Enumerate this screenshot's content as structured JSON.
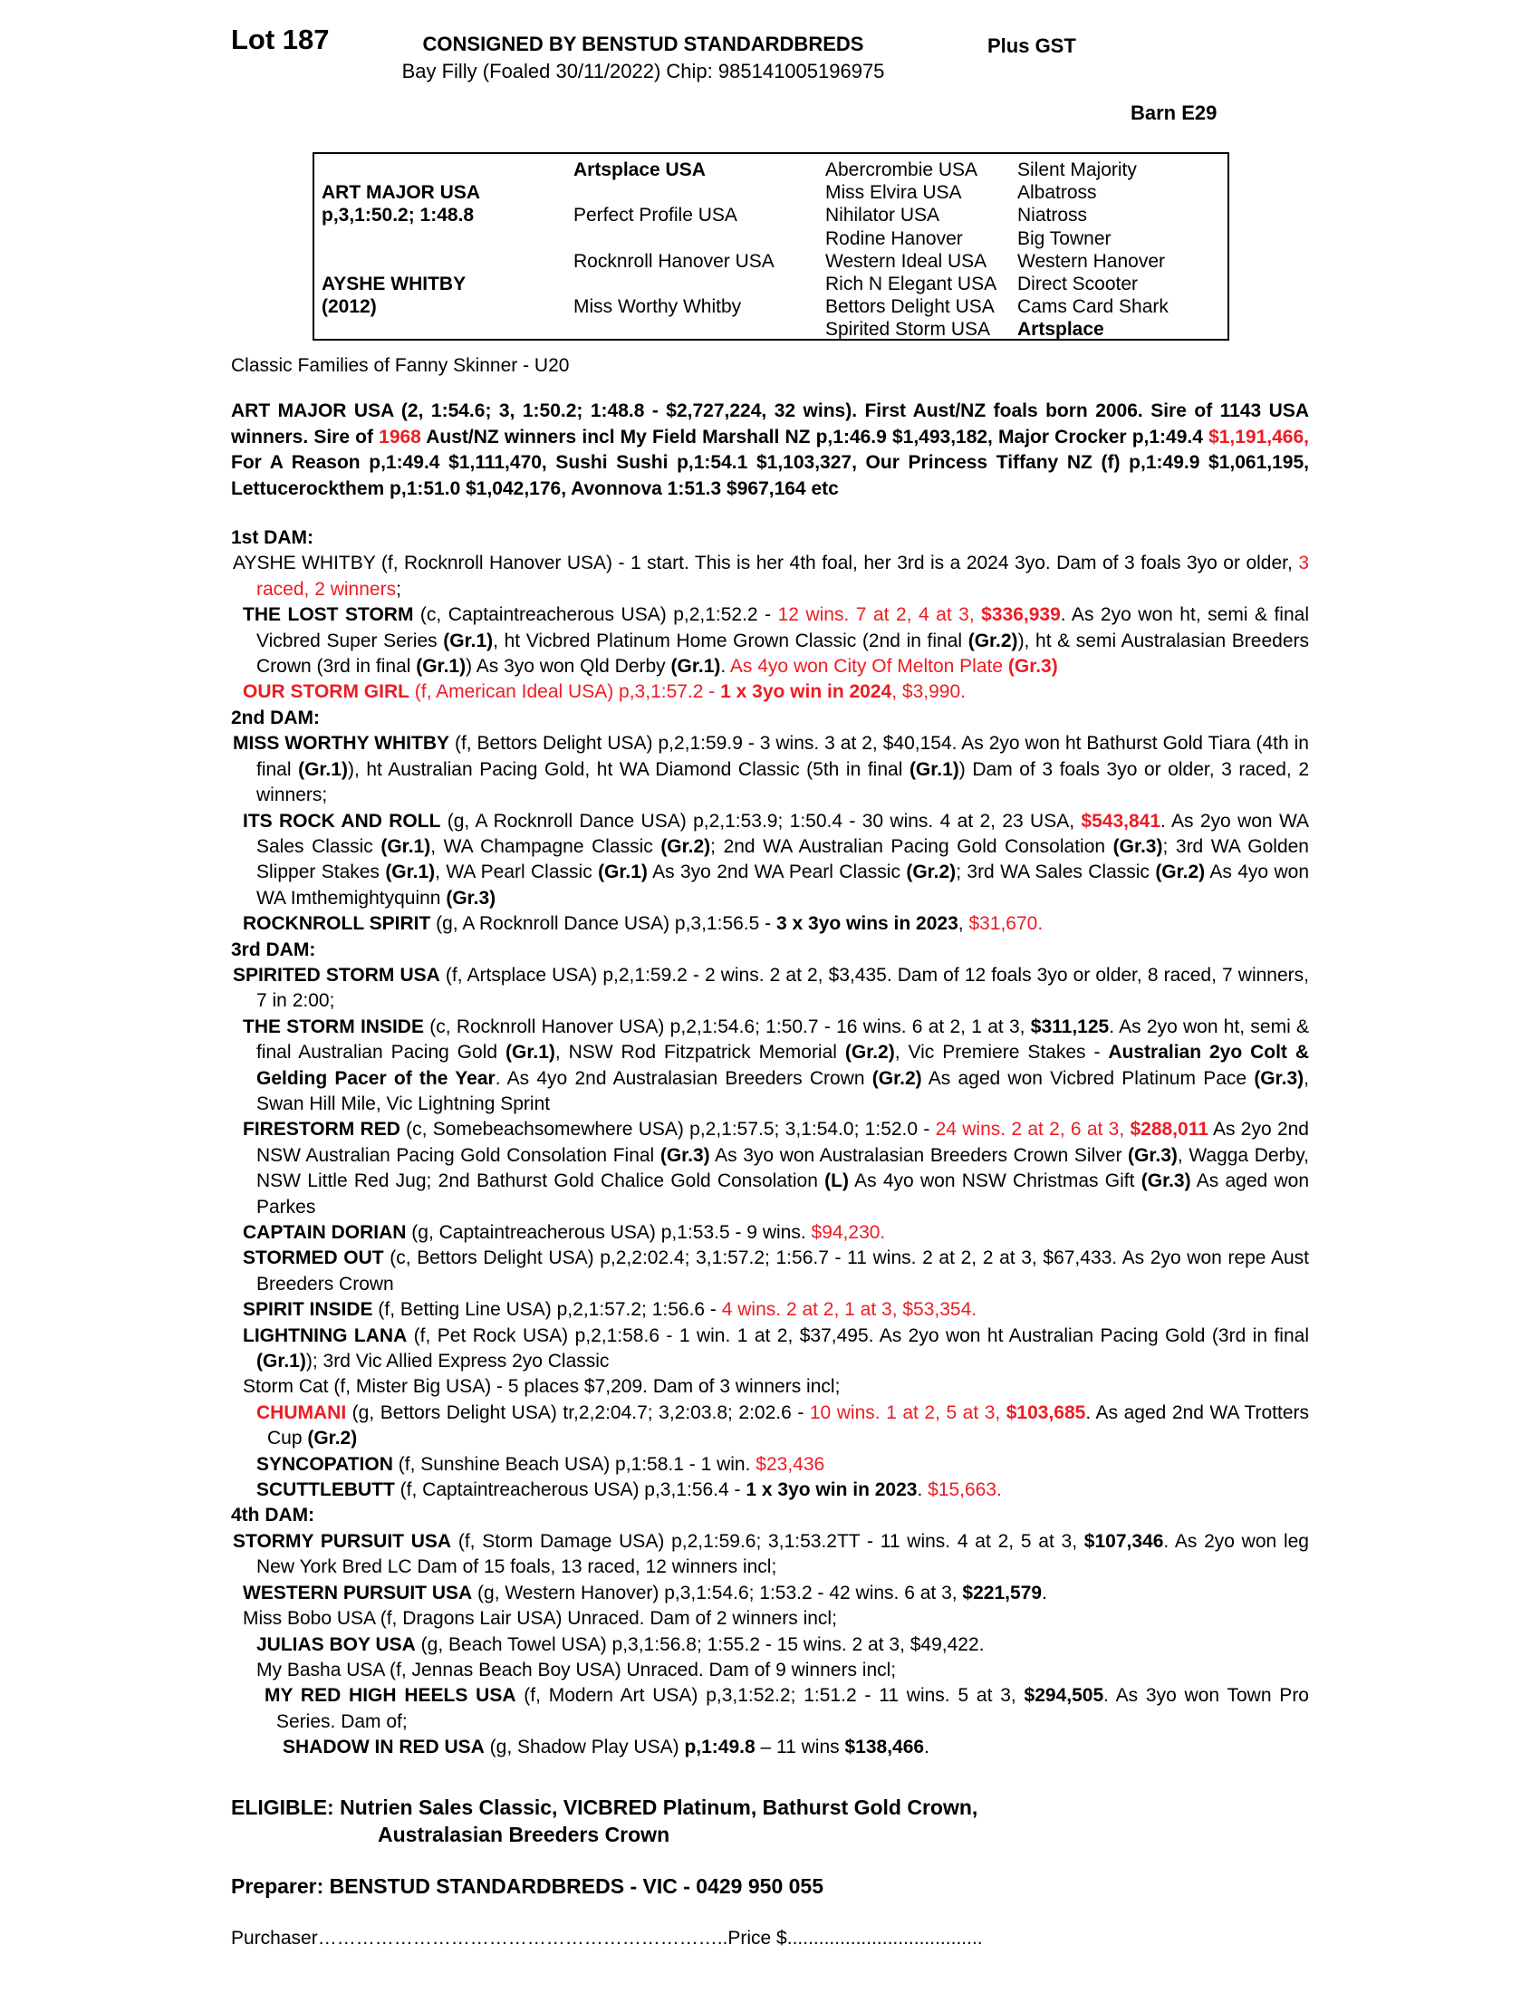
{
  "header": {
    "lot": "Lot 187",
    "consignor": "CONSIGNED BY BENSTUD STANDARDBREDS",
    "description": "Bay Filly (Foaled 30/11/2022) Chip: 985141005196975",
    "plus_gst": "Plus GST",
    "barn": "Barn E29"
  },
  "accent_red": "#ed1c24",
  "pedigree_table": {
    "col1": [
      {
        "t": ""
      },
      {
        "t": "ART MAJOR USA",
        "b": true
      },
      {
        "t": "p,3,1:50.2; 1:48.8",
        "b": true
      },
      {
        "t": ""
      },
      {
        "t": ""
      },
      {
        "t": "AYSHE WHITBY",
        "b": true
      },
      {
        "t": "(2012)",
        "b": true
      },
      {
        "t": ""
      }
    ],
    "col2": [
      {
        "t": "Artsplace USA",
        "b": true
      },
      {
        "t": ""
      },
      {
        "t": "Perfect Profile USA"
      },
      {
        "t": ""
      },
      {
        "t": "Rocknroll Hanover USA"
      },
      {
        "t": ""
      },
      {
        "t": "Miss Worthy Whitby"
      },
      {
        "t": ""
      }
    ],
    "col3": [
      {
        "t": "Abercrombie USA"
      },
      {
        "t": "Miss Elvira USA"
      },
      {
        "t": "Nihilator USA"
      },
      {
        "t": "Rodine Hanover"
      },
      {
        "t": "Western Ideal USA"
      },
      {
        "t": "Rich N Elegant USA"
      },
      {
        "t": "Bettors Delight USA"
      },
      {
        "t": "Spirited Storm USA"
      }
    ],
    "col4": [
      {
        "t": "Silent Majority"
      },
      {
        "t": "Albatross"
      },
      {
        "t": "Niatross"
      },
      {
        "t": "Big Towner"
      },
      {
        "t": "Western Hanover"
      },
      {
        "t": "Direct Scooter"
      },
      {
        "t": "Cams Card Shark"
      },
      {
        "t": "Artsplace",
        "b": true
      }
    ]
  },
  "family_line": "Classic Families of Fanny Skinner - U20",
  "sire_paragraph": [
    {
      "t": "ART MAJOR USA (2, 1:54.6; 3, 1:50.2; 1:48.8 - $2,727,224, 32 wins). First Aust/NZ foals born 2006. Sire of 1143 USA winners. Sire of ",
      "b": true
    },
    {
      "t": "1968",
      "b": true,
      "r": true
    },
    {
      "t": " Aust/NZ winners incl My Field Marshall NZ p,1:46.9 $1,493,182, Major Crocker p,1:49.4 ",
      "b": true
    },
    {
      "t": "$1,191,466,",
      "b": true,
      "r": true
    },
    {
      "t": " For A Reason p,1:49.4 $1,111,470, Sushi Sushi p,1:54.1 $1,103,327, Our Princess Tiffany NZ (f) p,1:49.9 $1,061,195, Lettucerockthem p,1:51.0 $1,042,176, Avonnova 1:51.3 $967,164 etc",
      "b": true
    }
  ],
  "body": {
    "blocks": [
      {
        "cls": "h",
        "name": "heading-1st-dam",
        "segs": [
          {
            "t": "1st DAM:",
            "b": true
          }
        ]
      },
      {
        "cls": "p1",
        "name": "para-ayshe-whitby",
        "segs": [
          {
            "t": "AYSHE WHITBY (f, Rocknroll Hanover USA) - 1 start. This is her 4th foal, her 3rd is a 2024 3yo. Dam of 3 foals 3yo or older, "
          },
          {
            "t": "3 raced, 2 winners",
            "r": true
          },
          {
            "t": ";"
          }
        ]
      },
      {
        "cls": "p2",
        "name": "para-the-lost-storm",
        "segs": [
          {
            "t": "THE LOST STORM",
            "b": true
          },
          {
            "t": " (c, Captaintreacherous USA) p,2,1:52.2 - "
          },
          {
            "t": "12 wins. 7 at 2, 4 at 3, ",
            "r": true
          },
          {
            "t": "$336,939",
            "b": true,
            "r": true
          },
          {
            "t": ". As 2yo won ht, semi & final Vicbred Super Series "
          },
          {
            "t": "(Gr.1)",
            "b": true
          },
          {
            "t": ", ht Vicbred Platinum Home Grown Classic (2nd in final "
          },
          {
            "t": "(Gr.2)",
            "b": true
          },
          {
            "t": "), ht & semi Australasian Breeders Crown (3rd in final "
          },
          {
            "t": "(Gr.1)",
            "b": true
          },
          {
            "t": ") As 3yo won Qld Derby "
          },
          {
            "t": "(Gr.1)",
            "b": true
          },
          {
            "t": ". "
          },
          {
            "t": "As 4yo won City Of Melton Plate ",
            "r": true
          },
          {
            "t": "(Gr.3)",
            "b": true,
            "r": true
          }
        ]
      },
      {
        "cls": "p2",
        "name": "para-our-storm-girl",
        "segs": [
          {
            "t": "OUR STORM GIRL",
            "b": true,
            "r": true
          },
          {
            "t": " (f, American Ideal USA) p,3,1:57.2 - ",
            "r": true
          },
          {
            "t": "1 x 3yo win in 2024",
            "b": true,
            "r": true
          },
          {
            "t": ", $3,990.",
            "r": true
          }
        ]
      },
      {
        "cls": "h",
        "name": "heading-2nd-dam",
        "segs": [
          {
            "t": "2nd DAM:",
            "b": true
          }
        ]
      },
      {
        "cls": "p1",
        "name": "para-miss-worthy-whitby",
        "segs": [
          {
            "t": "MISS WORTHY WHITBY",
            "b": true
          },
          {
            "t": " (f, Bettors Delight USA) p,2,1:59.9 - 3 wins. 3 at 2, $40,154. As 2yo won ht Bathurst Gold Tiara (4th in final "
          },
          {
            "t": "(Gr.1)",
            "b": true
          },
          {
            "t": "), ht Australian Pacing Gold, ht WA Diamond Classic (5th in final "
          },
          {
            "t": "(Gr.1)",
            "b": true
          },
          {
            "t": ") Dam of 3 foals 3yo or older, 3 raced, 2 winners;"
          }
        ]
      },
      {
        "cls": "p2",
        "name": "para-its-rock-and-roll",
        "segs": [
          {
            "t": "ITS ROCK AND ROLL",
            "b": true
          },
          {
            "t": " (g, A Rocknroll Dance USA) p,2,1:53.9; 1:50.4 - 30 wins. 4 at 2, 23 USA, "
          },
          {
            "t": "$543,841",
            "b": true,
            "r": true
          },
          {
            "t": ". As 2yo won WA Sales Classic "
          },
          {
            "t": "(Gr.1)",
            "b": true
          },
          {
            "t": ", WA Champagne Classic "
          },
          {
            "t": "(Gr.2)",
            "b": true
          },
          {
            "t": "; 2nd WA Australian Pacing Gold Consolation "
          },
          {
            "t": "(Gr.3)",
            "b": true
          },
          {
            "t": "; 3rd WA Golden Slipper Stakes "
          },
          {
            "t": "(Gr.1)",
            "b": true
          },
          {
            "t": ", WA Pearl Classic "
          },
          {
            "t": "(Gr.1)",
            "b": true
          },
          {
            "t": " As 3yo 2nd WA Pearl Classic "
          },
          {
            "t": "(Gr.2)",
            "b": true
          },
          {
            "t": "; 3rd WA Sales Classic "
          },
          {
            "t": "(Gr.2)",
            "b": true
          },
          {
            "t": " As 4yo won WA Imthemightyquinn "
          },
          {
            "t": "(Gr.3)",
            "b": true
          }
        ]
      },
      {
        "cls": "p2",
        "name": "para-rocknroll-spirit",
        "segs": [
          {
            "t": "ROCKNROLL SPIRIT",
            "b": true
          },
          {
            "t": " (g, A Rocknroll Dance USA) p,3,1:56.5 - "
          },
          {
            "t": "3 x 3yo wins in 2023",
            "b": true
          },
          {
            "t": ", "
          },
          {
            "t": "$31,670.",
            "r": true
          }
        ]
      },
      {
        "cls": "h",
        "name": "heading-3rd-dam",
        "segs": [
          {
            "t": "3rd DAM:",
            "b": true
          }
        ]
      },
      {
        "cls": "p1",
        "name": "para-spirited-storm-usa",
        "segs": [
          {
            "t": "SPIRITED STORM USA",
            "b": true
          },
          {
            "t": " (f, Artsplace USA) p,2,1:59.2 - 2 wins. 2 at 2, $3,435. Dam of 12 foals 3yo or older, 8 raced, 7 winners, 7 in 2:00;"
          }
        ]
      },
      {
        "cls": "p2",
        "name": "para-the-storm-inside",
        "segs": [
          {
            "t": "THE STORM INSIDE",
            "b": true
          },
          {
            "t": " (c, Rocknroll Hanover USA) p,2,1:54.6; 1:50.7 - 16 wins. 6 at 2, 1 at 3, "
          },
          {
            "t": "$311,125",
            "b": true
          },
          {
            "t": ". As 2yo won ht, semi & final Australian Pacing Gold "
          },
          {
            "t": "(Gr.1)",
            "b": true
          },
          {
            "t": ", NSW Rod Fitzpatrick Memorial "
          },
          {
            "t": "(Gr.2)",
            "b": true
          },
          {
            "t": ", Vic Premiere Stakes - "
          },
          {
            "t": "Australian 2yo Colt & Gelding Pacer of the Year",
            "b": true
          },
          {
            "t": ". As 4yo 2nd Australasian Breeders Crown "
          },
          {
            "t": "(Gr.2)",
            "b": true
          },
          {
            "t": " As aged won Vicbred Platinum Pace "
          },
          {
            "t": "(Gr.3)",
            "b": true
          },
          {
            "t": ", Swan Hill Mile, Vic Lightning Sprint"
          }
        ]
      },
      {
        "cls": "p2",
        "name": "para-firestorm-red",
        "segs": [
          {
            "t": "FIRESTORM RED",
            "b": true
          },
          {
            "t": " (c, Somebeachsomewhere USA) p,2,1:57.5; 3,1:54.0; 1:52.0 - "
          },
          {
            "t": "24 wins. 2 at 2, 6 at 3, ",
            "r": true
          },
          {
            "t": "$288,011",
            "b": true,
            "r": true
          },
          {
            "t": " As 2yo 2nd NSW Australian Pacing Gold Consolation Final "
          },
          {
            "t": "(Gr.3)",
            "b": true
          },
          {
            "t": " As 3yo won Australasian Breeders Crown Silver "
          },
          {
            "t": "(Gr.3)",
            "b": true
          },
          {
            "t": ", Wagga Derby, NSW Little Red Jug; 2nd Bathurst Gold Chalice Gold Consolation "
          },
          {
            "t": "(L)",
            "b": true
          },
          {
            "t": " As 4yo won NSW Christmas Gift "
          },
          {
            "t": "(Gr.3)",
            "b": true
          },
          {
            "t": " As aged won Parkes"
          }
        ]
      },
      {
        "cls": "p2",
        "name": "para-captain-dorian",
        "segs": [
          {
            "t": "CAPTAIN DORIAN",
            "b": true
          },
          {
            "t": " (g, Captaintreacherous USA) p,1:53.5 - 9 wins. "
          },
          {
            "t": "$94,230.",
            "r": true
          }
        ]
      },
      {
        "cls": "p2",
        "name": "para-stormed-out",
        "segs": [
          {
            "t": "STORMED OUT",
            "b": true
          },
          {
            "t": " (c, Bettors Delight USA) p,2,2:02.4; 3,1:57.2; 1:56.7 - 11 wins. 2 at 2, 2 at 3, $67,433. As 2yo won repe Aust Breeders Crown"
          }
        ]
      },
      {
        "cls": "p2",
        "name": "para-spirit-inside",
        "segs": [
          {
            "t": "SPIRIT INSIDE",
            "b": true
          },
          {
            "t": " (f, Betting Line USA) p,2,1:57.2; 1:56.6 - "
          },
          {
            "t": "4 wins. 2 at 2, 1 at 3, $53,354.",
            "r": true
          }
        ]
      },
      {
        "cls": "p2",
        "name": "para-lightning-lana",
        "segs": [
          {
            "t": "LIGHTNING LANA",
            "b": true
          },
          {
            "t": " (f, Pet Rock USA) p,2,1:58.6 - 1 win. 1 at 2, $37,495. As 2yo won ht Australian Pacing Gold (3rd in final "
          },
          {
            "t": "(Gr.1)",
            "b": true
          },
          {
            "t": "); 3rd Vic Allied Express 2yo Classic"
          }
        ]
      },
      {
        "cls": "p2",
        "name": "para-storm-cat",
        "segs": [
          {
            "t": "Storm Cat (f, Mister Big USA) - 5 places $7,209. Dam of 3 winners incl;"
          }
        ]
      },
      {
        "cls": "p3",
        "name": "para-chumani",
        "segs": [
          {
            "t": "CHUMANI",
            "b": true,
            "r": true
          },
          {
            "t": " (g, Bettors Delight USA) tr,2,2:04.7; 3,2:03.8; 2:02.6 - "
          },
          {
            "t": "10 wins. 1 at 2, 5 at 3, ",
            "r": true
          },
          {
            "t": "$103,685",
            "b": true,
            "r": true
          },
          {
            "t": ". As aged 2nd WA Trotters Cup "
          },
          {
            "t": "(Gr.2)",
            "b": true
          }
        ]
      },
      {
        "cls": "p3",
        "name": "para-syncopation",
        "segs": [
          {
            "t": "SYNCOPATION",
            "b": true
          },
          {
            "t": " (f, Sunshine Beach USA) p,1:58.1 - 1 win. "
          },
          {
            "t": "$23,436",
            "r": true
          }
        ]
      },
      {
        "cls": "p3",
        "name": "para-scuttlebutt",
        "segs": [
          {
            "t": "SCUTTLEBUTT",
            "b": true
          },
          {
            "t": " (f, Captaintreacherous USA) p,3,1:56.4 - "
          },
          {
            "t": "1 x 3yo win in 2023",
            "b": true
          },
          {
            "t": ". "
          },
          {
            "t": "$15,663.",
            "r": true
          }
        ]
      },
      {
        "cls": "h",
        "name": "heading-4th-dam",
        "segs": [
          {
            "t": "4th DAM:",
            "b": true
          }
        ]
      },
      {
        "cls": "p1",
        "name": "para-stormy-pursuit-usa",
        "segs": [
          {
            "t": "STORMY PURSUIT USA",
            "b": true
          },
          {
            "t": " (f, Storm Damage USA) p,2,1:59.6; 3,1:53.2TT - 11 wins. 4 at 2, 5 at 3, "
          },
          {
            "t": "$107,346",
            "b": true
          },
          {
            "t": ". As 2yo won leg New York Bred LC Dam of 15 foals, 13 raced, 12 winners incl;"
          }
        ]
      },
      {
        "cls": "p2",
        "name": "para-western-pursuit-usa",
        "segs": [
          {
            "t": "WESTERN PURSUIT USA",
            "b": true
          },
          {
            "t": " (g, Western Hanover) p,3,1:54.6; 1:53.2 - 42 wins. 6 at 3, "
          },
          {
            "t": "$221,579",
            "b": true
          },
          {
            "t": "."
          }
        ]
      },
      {
        "cls": "p2",
        "name": "para-miss-bobo-usa",
        "segs": [
          {
            "t": "Miss Bobo USA (f, Dragons Lair USA) Unraced. Dam of 2 winners incl;"
          }
        ]
      },
      {
        "cls": "p3",
        "name": "para-julias-boy-usa",
        "segs": [
          {
            "t": "JULIAS BOY USA",
            "b": true
          },
          {
            "t": " (g, Beach Towel USA) p,3,1:56.8; 1:55.2 - 15 wins. 2 at 3, $49,422."
          }
        ]
      },
      {
        "cls": "p3",
        "name": "para-my-basha-usa",
        "segs": [
          {
            "t": "My Basha USA (f, Jennas Beach Boy USA) Unraced. Dam of 9 winners incl;"
          }
        ]
      },
      {
        "cls": "p4",
        "name": "para-my-red-high-heels-usa",
        "segs": [
          {
            "t": "MY RED HIGH HEELS USA",
            "b": true
          },
          {
            "t": " (f, Modern Art USA) p,3,1:52.2; 1:51.2 - 11 wins. 5 at 3, "
          },
          {
            "t": "$294,505",
            "b": true
          },
          {
            "t": ". As 3yo won Town Pro Series. Dam of;"
          }
        ]
      },
      {
        "cls": "p5",
        "name": "para-shadow-in-red-usa",
        "segs": [
          {
            "t": "SHADOW IN RED USA",
            "b": true
          },
          {
            "t": " (g, Shadow Play USA) "
          },
          {
            "t": "p,1:49.8",
            "b": true
          },
          {
            "t": " – 11 wins "
          },
          {
            "t": "$138,466",
            "b": true
          },
          {
            "t": "."
          }
        ]
      }
    ]
  },
  "footer": {
    "eligible_line1": "ELIGIBLE: Nutrien Sales Classic, VICBRED Platinum, Bathurst Gold Crown,",
    "eligible_line2": "Australasian Breeders Crown",
    "preparer": "Preparer: BENSTUD STANDARDBREDS - VIC - 0429 950 055",
    "purchaser_line": "Purchaser………………………………………………………..Price $....................................."
  }
}
